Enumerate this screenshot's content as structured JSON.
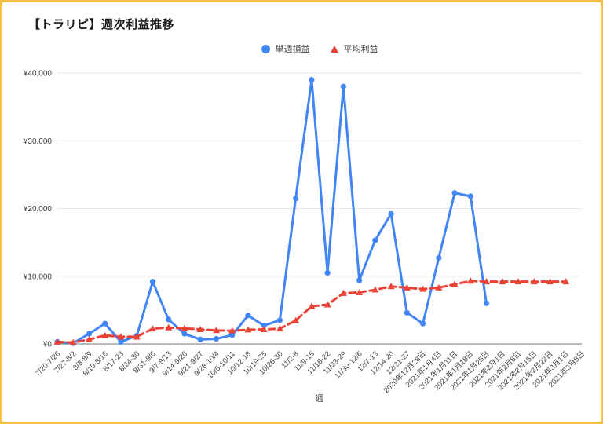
{
  "page": {
    "title": "【トラリピ】週次利益推移",
    "xaxis_title": "週"
  },
  "colors": {
    "frame_border": "#f0c04a",
    "grid": "#e6e6e6",
    "axis": "#757575",
    "tick_text": "#424242",
    "title_text": "#1a1a1a"
  },
  "chart_data": {
    "type": "line",
    "title": "【トラリピ】週次利益推移",
    "xlabel": "週",
    "ylabel": "",
    "ylim": [
      0,
      40000
    ],
    "grid": true,
    "legend_position": "top-center",
    "y_ticks": [
      {
        "value": 0,
        "label": "¥0"
      },
      {
        "value": 10000,
        "label": "¥10,000"
      },
      {
        "value": 20000,
        "label": "¥20,000"
      },
      {
        "value": 30000,
        "label": "¥30,000"
      },
      {
        "value": 40000,
        "label": "¥40,000"
      }
    ],
    "categories": [
      "7/20-7/26",
      "7/27-8/2",
      "8/3-8/9",
      "8/10-8/16",
      "8/17-23",
      "8/24-30",
      "8/31-9/6",
      "9/7-9/13",
      "9/14-9/20",
      "9/21-9/27",
      "9/28-10/4",
      "10/5-10/11",
      "10/12-18",
      "10/19-25",
      "10/26-30",
      "11/2-8",
      "11/9-15",
      "11/16-22",
      "11/23-29",
      "11/30-12/6",
      "12/7-13",
      "12/14-20",
      "12/21-27",
      "2020年12月28日",
      "2021年1月4日",
      "2021年1月11日",
      "2021年1月18日",
      "2021年1月25日",
      "2021年2月1日",
      "2021年2月8日",
      "2021年2月15日",
      "2021年2月22日",
      "2021年3月1日",
      "2021年3月8日"
    ],
    "series": [
      {
        "name": "単週損益",
        "data_name": "weekly-profit-line",
        "color": "#4285F4",
        "marker": "circle",
        "dash": "solid",
        "values": [
          300,
          100,
          1500,
          3000,
          300,
          1200,
          9200,
          3600,
          1500,
          650,
          750,
          1300,
          4200,
          2700,
          3500,
          21500,
          39000,
          10500,
          38000,
          9400,
          15300,
          19200,
          4600,
          3000,
          12700,
          22300,
          21800,
          6000,
          null,
          null,
          null,
          null,
          null,
          null
        ]
      },
      {
        "name": "平均利益",
        "data_name": "average-profit-line",
        "color": "#EA4335",
        "marker": "triangle",
        "dash": "dashed",
        "values": [
          300,
          200,
          650,
          1250,
          1050,
          1050,
          2250,
          2400,
          2300,
          2150,
          2000,
          1950,
          2100,
          2150,
          2250,
          3450,
          5550,
          5800,
          7500,
          7600,
          8000,
          8500,
          8300,
          8100,
          8300,
          8800,
          9300,
          9200,
          9200,
          9200,
          9200,
          9200,
          9200,
          null
        ]
      }
    ]
  }
}
